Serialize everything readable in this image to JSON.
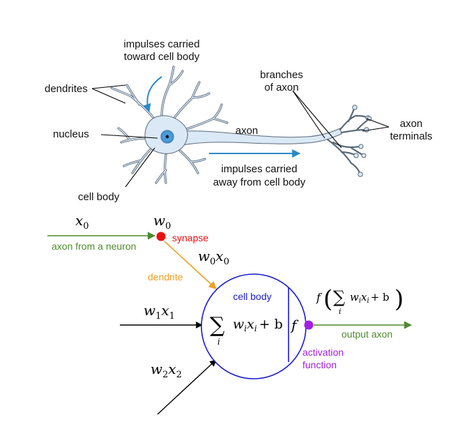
{
  "neuron": {
    "labels": {
      "impulses_toward_1": "impulses carried",
      "impulses_toward_2": "toward cell body",
      "dendrites": "dendrites",
      "nucleus": "nucleus",
      "cell_body": "cell body",
      "axon": "axon",
      "branches_1": "branches",
      "branches_2": "of axon",
      "terminals_1": "axon",
      "terminals_2": "terminals",
      "impulses_away_1": "impulses carried",
      "impulses_away_2": "away from cell body"
    }
  },
  "model": {
    "x0": "x",
    "x0_sub": "0",
    "w0": "w",
    "w0_sub": "0",
    "axon_from_neuron": "axon from a neuron",
    "synapse": "synapse",
    "w0x0_w": "w",
    "w0x0_ws": "0",
    "w0x0_x": "x",
    "w0x0_xs": "0",
    "dendrite": "dendrite",
    "cell_body": "cell body",
    "w1x1_w": "w",
    "w1x1_ws": "1",
    "w1x1_x": "x",
    "w1x1_xs": "1",
    "w2x2_w": "w",
    "w2x2_ws": "2",
    "w2x2_x": "x",
    "w2x2_xs": "2",
    "sum_symbol": "∑",
    "sum_index": "i",
    "sum_w": "w",
    "sum_x": "x",
    "sub_i": "i",
    "plus_b": "+ b",
    "f": "f",
    "out_f": "f",
    "out_lparen": "(",
    "out_sum": "∑",
    "out_index": "i",
    "out_w": "w",
    "out_x": "x",
    "out_sub_i": "i",
    "out_plus_b": "+ b",
    "out_rparen": ")",
    "output_axon": "output axon",
    "activation_1": "activation",
    "activation_2": "function"
  },
  "colors": {
    "axon_in": "#4e8a2e",
    "synapse": "#ee1111",
    "dendrite": "#eea020",
    "cell_body": "#1a1ad0",
    "activation": "#a020e0",
    "output": "#4e8a2e",
    "impulse_arrow": "#2a8ac8",
    "neuron_fill": "#dbe8f6",
    "nucleus": "#4a9ad8"
  }
}
